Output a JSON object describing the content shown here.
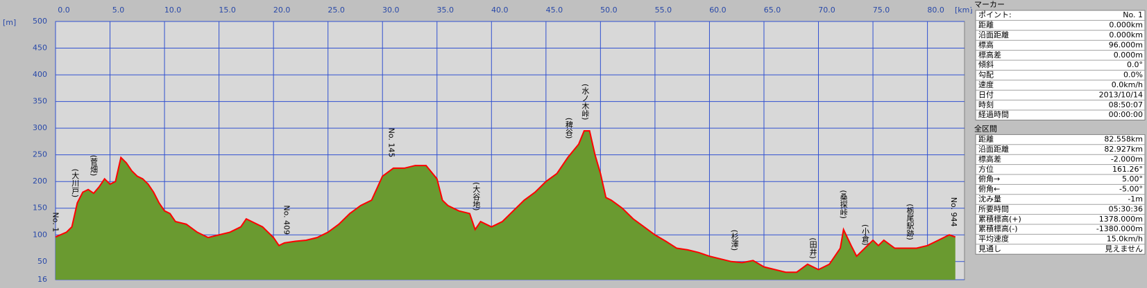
{
  "chart_data": {
    "type": "area",
    "x_label": "[km]",
    "y_label": "[m]",
    "xlim": [
      0,
      83.4
    ],
    "ylim": [
      16,
      500
    ],
    "xticks": [
      {
        "value": 0,
        "label": "0.0"
      },
      {
        "value": 5,
        "label": "5.0"
      },
      {
        "value": 10,
        "label": "10.0"
      },
      {
        "value": 15,
        "label": "15.0"
      },
      {
        "value": 20,
        "label": "20.0"
      },
      {
        "value": 25,
        "label": "25.0"
      },
      {
        "value": 30,
        "label": "30.0"
      },
      {
        "value": 35,
        "label": "35.0"
      },
      {
        "value": 40,
        "label": "40.0"
      },
      {
        "value": 45,
        "label": "45.0"
      },
      {
        "value": 50,
        "label": "50.0"
      },
      {
        "value": 55,
        "label": "55.0"
      },
      {
        "value": 60,
        "label": "60.0"
      },
      {
        "value": 65,
        "label": "65.0"
      },
      {
        "value": 70,
        "label": "70.0"
      },
      {
        "value": 75,
        "label": "75.0"
      },
      {
        "value": 80,
        "label": "80.0"
      }
    ],
    "yticks": [
      16,
      50,
      100,
      150,
      200,
      250,
      300,
      350,
      400,
      450,
      500
    ],
    "grid": true,
    "fill_color": "#6a9a30",
    "line_color": "#ff0000",
    "x": [
      0,
      1,
      1.5,
      2,
      2.5,
      3,
      3.5,
      4,
      4.5,
      5,
      5.5,
      6,
      6.5,
      7,
      7.5,
      8,
      8.5,
      9,
      9.5,
      10,
      10.5,
      11,
      12,
      13,
      14,
      15,
      16,
      17,
      17.5,
      18,
      19,
      20,
      20.5,
      21,
      22,
      23,
      24,
      25,
      26,
      27,
      28,
      29,
      30,
      31,
      32,
      33,
      34,
      35,
      35.5,
      36,
      37,
      38,
      38.5,
      39,
      40,
      41,
      42,
      43,
      44,
      45,
      46,
      47,
      48,
      48.5,
      49,
      49.5,
      50,
      50.5,
      51,
      52,
      53,
      54,
      55,
      56,
      57,
      58,
      59,
      60,
      61,
      62,
      63,
      64,
      65,
      66,
      67,
      68,
      69,
      70,
      71,
      72,
      72.3,
      73,
      73.5,
      74,
      75,
      75.5,
      76,
      77,
      78,
      79,
      80,
      81,
      82,
      82.558
    ],
    "values": [
      96,
      105,
      115,
      160,
      180,
      185,
      178,
      190,
      205,
      195,
      200,
      245,
      235,
      220,
      210,
      205,
      195,
      180,
      160,
      145,
      140,
      125,
      120,
      105,
      95,
      100,
      105,
      115,
      130,
      125,
      115,
      95,
      80,
      85,
      88,
      90,
      95,
      105,
      120,
      140,
      155,
      165,
      210,
      225,
      225,
      230,
      230,
      205,
      165,
      155,
      145,
      140,
      110,
      125,
      115,
      125,
      145,
      165,
      180,
      200,
      215,
      245,
      270,
      295,
      295,
      250,
      215,
      170,
      165,
      150,
      130,
      115,
      100,
      88,
      75,
      72,
      67,
      60,
      55,
      50,
      48,
      52,
      40,
      35,
      30,
      30,
      45,
      35,
      45,
      75,
      110,
      80,
      60,
      70,
      90,
      80,
      90,
      75,
      75,
      75,
      80,
      90,
      100,
      96
    ],
    "annotations": [
      {
        "text": "No. 1",
        "x": 0,
        "y": 100
      },
      {
        "text": "(大川戸)",
        "x": 1.8,
        "y": 165
      },
      {
        "text": "(菅畑)",
        "x": 3.5,
        "y": 205
      },
      {
        "text": "No. 409",
        "x": 21.2,
        "y": 95
      },
      {
        "text": "No. 145",
        "x": 30.8,
        "y": 240
      },
      {
        "text": "(大谷地)",
        "x": 38.6,
        "y": 140
      },
      {
        "text": "(稗谷)",
        "x": 47.1,
        "y": 275
      },
      {
        "text": "(水ノ木峠)",
        "x": 48.6,
        "y": 310
      },
      {
        "text": "(杉澤)",
        "x": 62.3,
        "y": 65
      },
      {
        "text": "(田井)",
        "x": 69.5,
        "y": 50
      },
      {
        "text": "(桑探峠)",
        "x": 72.3,
        "y": 125
      },
      {
        "text": "(小倉)",
        "x": 74.3,
        "y": 75
      },
      {
        "text": "(栃尾駅跡)",
        "x": 78.4,
        "y": 85
      },
      {
        "text": "No. 944",
        "x": 82.4,
        "y": 110
      }
    ]
  },
  "panel": {
    "marker_title": "マーカー",
    "marker_rows": [
      [
        "ポイント:",
        "No. 1"
      ],
      [
        "距離",
        "0.000km"
      ],
      [
        "沿面距離",
        "0.000km"
      ],
      [
        "標高",
        "96.000m"
      ],
      [
        "標高差",
        "0.000m"
      ],
      [
        "傾斜",
        "0.0°"
      ],
      [
        "勾配",
        "0.0%"
      ],
      [
        "速度",
        "0.0km/h"
      ],
      [
        "日付",
        "2013/10/14"
      ],
      [
        "時刻",
        "08:50:07"
      ],
      [
        "経過時間",
        "00:00:00"
      ]
    ],
    "total_title": "全区間",
    "total_rows": [
      [
        "距離",
        "82.558km"
      ],
      [
        "沿面距離",
        "82.927km"
      ],
      [
        "標高差",
        "-2.000m"
      ],
      [
        "方位",
        "161.26°"
      ],
      [
        "俯角→",
        "5.00°"
      ],
      [
        "俯角←",
        "-5.00°"
      ],
      [
        "沈み量",
        "-1m"
      ],
      [
        "所要時間",
        "05:30:36"
      ],
      [
        "累積標高(+)",
        "1378.000m"
      ],
      [
        "累積標高(-)",
        "-1380.000m"
      ],
      [
        "平均速度",
        "15.0km/h"
      ],
      [
        "見通し",
        "見えません"
      ]
    ]
  }
}
